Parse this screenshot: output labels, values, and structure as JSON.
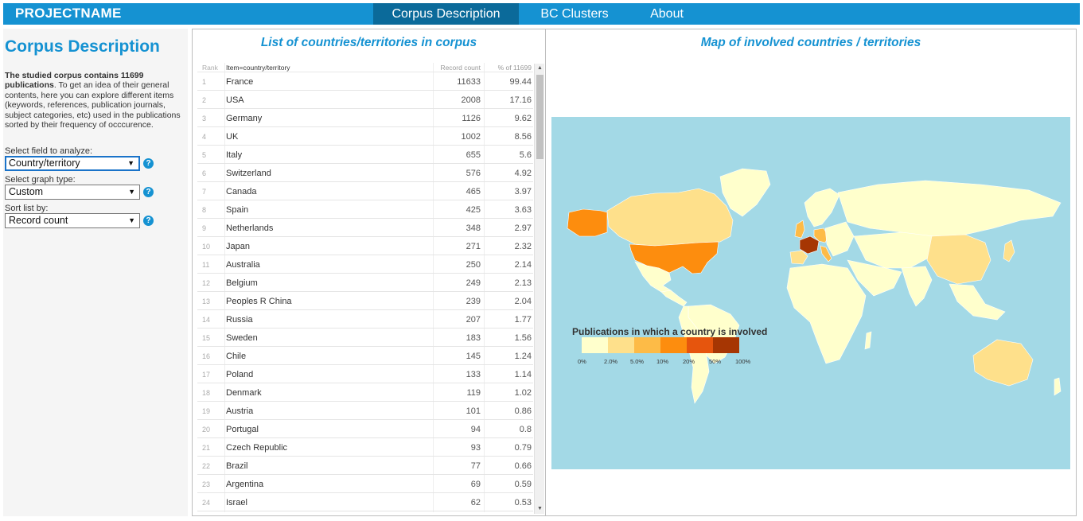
{
  "nav": {
    "brand": "PROJECTNAME",
    "items": [
      {
        "label": "Corpus Description",
        "active": true
      },
      {
        "label": "BC Clusters",
        "active": false
      },
      {
        "label": "About",
        "active": false
      }
    ]
  },
  "sidebar": {
    "title": "Corpus Description",
    "desc_bold": "The studied corpus contains 11699 publications",
    "desc_rest": ". To get an idea of their general contents, here you can explore different items (keywords, references, publication journals, subject categories, etc) used in the publications sorted by their frequency of occcurence.",
    "field_label": "Select field to analyze:",
    "field_value": "Country/territory",
    "graph_label": "Select graph type:",
    "graph_value": "Custom",
    "sort_label": "Sort list by:",
    "sort_value": "Record count",
    "help_glyph": "?"
  },
  "table": {
    "title": "List of countries/territories in corpus",
    "headers": {
      "rank": "Rank",
      "item": "Item=country/territory",
      "count": "Record count",
      "pct": "% of 11699"
    },
    "rows": [
      {
        "rank": "1",
        "item": "France",
        "count": "11633",
        "pct": "99.44"
      },
      {
        "rank": "2",
        "item": "USA",
        "count": "2008",
        "pct": "17.16"
      },
      {
        "rank": "3",
        "item": "Germany",
        "count": "1126",
        "pct": "9.62"
      },
      {
        "rank": "4",
        "item": "UK",
        "count": "1002",
        "pct": "8.56"
      },
      {
        "rank": "5",
        "item": "Italy",
        "count": "655",
        "pct": "5.6"
      },
      {
        "rank": "6",
        "item": "Switzerland",
        "count": "576",
        "pct": "4.92"
      },
      {
        "rank": "7",
        "item": "Canada",
        "count": "465",
        "pct": "3.97"
      },
      {
        "rank": "8",
        "item": "Spain",
        "count": "425",
        "pct": "3.63"
      },
      {
        "rank": "9",
        "item": "Netherlands",
        "count": "348",
        "pct": "2.97"
      },
      {
        "rank": "10",
        "item": "Japan",
        "count": "271",
        "pct": "2.32"
      },
      {
        "rank": "11",
        "item": "Australia",
        "count": "250",
        "pct": "2.14"
      },
      {
        "rank": "12",
        "item": "Belgium",
        "count": "249",
        "pct": "2.13"
      },
      {
        "rank": "13",
        "item": "Peoples R China",
        "count": "239",
        "pct": "2.04"
      },
      {
        "rank": "14",
        "item": "Russia",
        "count": "207",
        "pct": "1.77"
      },
      {
        "rank": "15",
        "item": "Sweden",
        "count": "183",
        "pct": "1.56"
      },
      {
        "rank": "16",
        "item": "Chile",
        "count": "145",
        "pct": "1.24"
      },
      {
        "rank": "17",
        "item": "Poland",
        "count": "133",
        "pct": "1.14"
      },
      {
        "rank": "18",
        "item": "Denmark",
        "count": "119",
        "pct": "1.02"
      },
      {
        "rank": "19",
        "item": "Austria",
        "count": "101",
        "pct": "0.86"
      },
      {
        "rank": "20",
        "item": "Portugal",
        "count": "94",
        "pct": "0.8"
      },
      {
        "rank": "21",
        "item": "Czech Republic",
        "count": "93",
        "pct": "0.79"
      },
      {
        "rank": "22",
        "item": "Brazil",
        "count": "77",
        "pct": "0.66"
      },
      {
        "rank": "23",
        "item": "Argentina",
        "count": "69",
        "pct": "0.59"
      },
      {
        "rank": "24",
        "item": "Israel",
        "count": "62",
        "pct": "0.53"
      }
    ],
    "scroll_up_glyph": "▲",
    "scroll_down_glyph": "▼"
  },
  "map": {
    "title": "Map of involved countries / territories",
    "legend_title": "Publications in which a country is involved",
    "legend_colors": [
      "#ffffcc",
      "#fee08b",
      "#fdbb47",
      "#fd8d0e",
      "#e6550d",
      "#a63603"
    ],
    "legend_ticks": [
      "0%",
      "2.0%",
      "5.0%",
      "10%",
      "20%",
      "50%",
      "100%"
    ],
    "ocean_color": "#a3d9e6",
    "country_colors": {
      "France": "#a63603",
      "USA": "#fd8d0e",
      "Germany": "#fdbb47",
      "UK": "#fdbb47",
      "Italy": "#fdbb47",
      "Switzerland": "#fee08b",
      "Canada": "#fee08b",
      "Spain": "#fee08b",
      "Netherlands": "#fee08b",
      "Japan": "#fee08b",
      "Australia": "#fee08b",
      "Belgium": "#fee08b",
      "Peoples R China": "#fee08b",
      "Russia": "#ffffcc",
      "Alaska": "#fd8d0e"
    }
  }
}
